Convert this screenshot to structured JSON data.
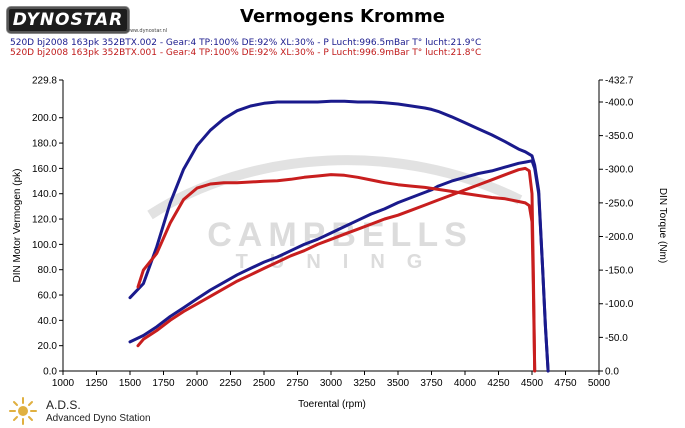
{
  "header": {
    "logo_text": "DYNOSTAR",
    "logo_sub": "www.dynostar.nl",
    "title": "Vermogens Kromme"
  },
  "runs": [
    {
      "text": "520D bj2008 163pk 352BTX.002 - Gear:4 TP:100% DE:92% XL:30%  - P Lucht:996.5mBar T° lucht:21.9°C",
      "color": "#1a1a8c"
    },
    {
      "text": "520D bj2008 163pk 352BTX.001 - Gear:4 TP:100% DE:92% XL:30%  - P Lucht:996.9mBar T° lucht:21.8°C",
      "color": "#c01a1a"
    }
  ],
  "footer": {
    "ads_name": "A.D.S.",
    "ads_sub": "Advanced Dyno Station"
  },
  "watermark": {
    "line1": "CAMPBELLS",
    "line2": "TUNING"
  },
  "chart_data": {
    "type": "line",
    "title": "Vermogens Kromme",
    "xlabel": "Toerental (rpm)",
    "ylabel_left": "DIN Motor Vermogen (pk)",
    "ylabel_right": "DIN Torque (Nm)",
    "xlim": [
      1000,
      5000
    ],
    "ylim_left": [
      0,
      229.8
    ],
    "ylim_right": [
      0,
      432.7
    ],
    "x_ticks": [
      "1000",
      "1250",
      "1500",
      "1750",
      "2000",
      "2250",
      "2500",
      "2750",
      "3000",
      "3250",
      "3500",
      "3750",
      "4000",
      "4250",
      "4500",
      "4750",
      "5000"
    ],
    "y_left_ticks": [
      "0.0",
      "20.0",
      "40.0",
      "60.0",
      "80.0",
      "100.0",
      "120.0",
      "140.0",
      "160.0",
      "180.0",
      "200.0",
      "229.8"
    ],
    "y_right_ticks": [
      "0.0",
      "-50.0",
      "-100.0",
      "-150.0",
      "-200.0",
      "-250.0",
      "-300.0",
      "-350.0",
      "-400.0",
      "-432.7"
    ],
    "grid": false,
    "series": [
      {
        "axis": "left",
        "color": "#1a1a8c",
        "width": 3,
        "x": [
          1500,
          1600,
          1700,
          1800,
          1900,
          2000,
          2100,
          2200,
          2300,
          2400,
          2500,
          2600,
          2700,
          2800,
          2900,
          3000,
          3100,
          3200,
          3300,
          3400,
          3500,
          3600,
          3700,
          3750,
          3800,
          3900,
          4000,
          4100,
          4200,
          4300,
          4400,
          4450,
          4500,
          4520,
          4550,
          4580,
          4600,
          4620
        ],
        "y": [
          23,
          28,
          35,
          43,
          50,
          57,
          64,
          70,
          76,
          81,
          86,
          90,
          95,
          100,
          104,
          109,
          114,
          119,
          124,
          128,
          133,
          137,
          141,
          143,
          146,
          150,
          153,
          156,
          158,
          161,
          164,
          165,
          166,
          160,
          140,
          80,
          35,
          0
        ]
      },
      {
        "axis": "right",
        "color": "#1a1a8c",
        "width": 3,
        "x": [
          1500,
          1600,
          1700,
          1800,
          1900,
          2000,
          2100,
          2200,
          2300,
          2400,
          2500,
          2600,
          2700,
          2800,
          2900,
          3000,
          3100,
          3200,
          3300,
          3400,
          3500,
          3600,
          3700,
          3750,
          3800,
          3900,
          4000,
          4100,
          4200,
          4300,
          4400,
          4450,
          4500,
          4520,
          4550,
          4580,
          4600,
          4620
        ],
        "y": [
          109,
          130,
          185,
          250,
          300,
          335,
          358,
          375,
          387,
          394,
          398,
          400,
          400,
          400,
          400,
          401,
          401,
          400,
          400,
          399,
          397,
          394,
          391,
          389,
          386,
          378,
          369,
          360,
          351,
          341,
          330,
          326,
          320,
          306,
          268,
          150,
          68,
          0
        ]
      },
      {
        "axis": "left",
        "color": "#c81e1e",
        "width": 3,
        "x": [
          1560,
          1600,
          1700,
          1800,
          1900,
          2000,
          2100,
          2200,
          2300,
          2400,
          2500,
          2600,
          2700,
          2800,
          2900,
          3000,
          3100,
          3200,
          3300,
          3400,
          3500,
          3600,
          3700,
          3800,
          3900,
          4000,
          4100,
          4200,
          4300,
          4400,
          4450,
          4480,
          4500,
          4510,
          4520
        ],
        "y": [
          20,
          25,
          32,
          40,
          47,
          53,
          59,
          65,
          71,
          76,
          81,
          86,
          91,
          95,
          100,
          104,
          108,
          112,
          116,
          120,
          123,
          127,
          131,
          135,
          139,
          143,
          147,
          151,
          155,
          159,
          160,
          158,
          140,
          80,
          0
        ]
      },
      {
        "axis": "right",
        "color": "#c81e1e",
        "width": 3,
        "x": [
          1560,
          1600,
          1700,
          1800,
          1900,
          2000,
          2100,
          2200,
          2300,
          2400,
          2500,
          2600,
          2700,
          2800,
          2900,
          3000,
          3100,
          3200,
          3300,
          3400,
          3500,
          3600,
          3700,
          3800,
          3900,
          4000,
          4100,
          4200,
          4300,
          4400,
          4450,
          4480,
          4500,
          4510,
          4520
        ],
        "y": [
          125,
          150,
          175,
          220,
          255,
          272,
          278,
          280,
          280,
          281,
          282,
          283,
          285,
          288,
          290,
          292,
          291,
          288,
          284,
          280,
          277,
          275,
          273,
          270,
          267,
          264,
          261,
          258,
          256,
          252,
          250,
          246,
          222,
          128,
          0
        ]
      }
    ]
  }
}
